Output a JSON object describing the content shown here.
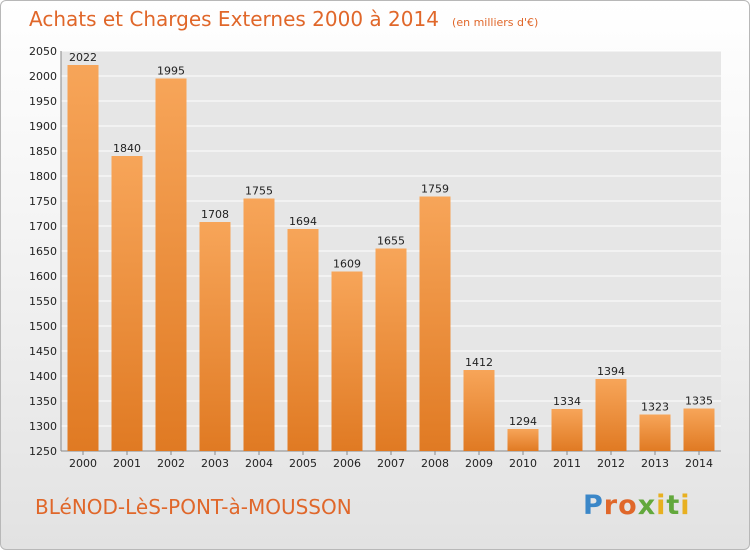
{
  "header": {
    "title": "Achats et Charges Externes 2000 à 2014",
    "unit_note": "(en milliers d'€)"
  },
  "footer": {
    "city": "BLéNOD-LèS-PONT-à-MOUSSON",
    "brand": "Proxiti"
  },
  "colors": {
    "accent": "#e0672a",
    "bar_top": "#f7a559",
    "bar_bottom": "#e07a23",
    "brand_blue": "#3b87c8",
    "brand_green": "#62a83c",
    "brand_yellow": "#e8b020"
  },
  "chart_data": {
    "type": "bar",
    "title": "Achats et Charges Externes 2000 à 2014",
    "subtitle": "(en milliers d'€)",
    "xlabel": "",
    "ylabel": "",
    "categories": [
      "2000",
      "2001",
      "2002",
      "2003",
      "2004",
      "2005",
      "2006",
      "2007",
      "2008",
      "2009",
      "2010",
      "2011",
      "2012",
      "2013",
      "2014"
    ],
    "values": [
      2022,
      1840,
      1995,
      1708,
      1755,
      1694,
      1609,
      1655,
      1759,
      1412,
      1294,
      1334,
      1394,
      1323,
      1335
    ],
    "ylim": [
      1250,
      2050
    ],
    "yticks": [
      1250,
      1300,
      1350,
      1400,
      1450,
      1500,
      1550,
      1600,
      1650,
      1700,
      1750,
      1800,
      1850,
      1900,
      1950,
      2000,
      2050
    ],
    "grid": true,
    "legend": "none"
  }
}
